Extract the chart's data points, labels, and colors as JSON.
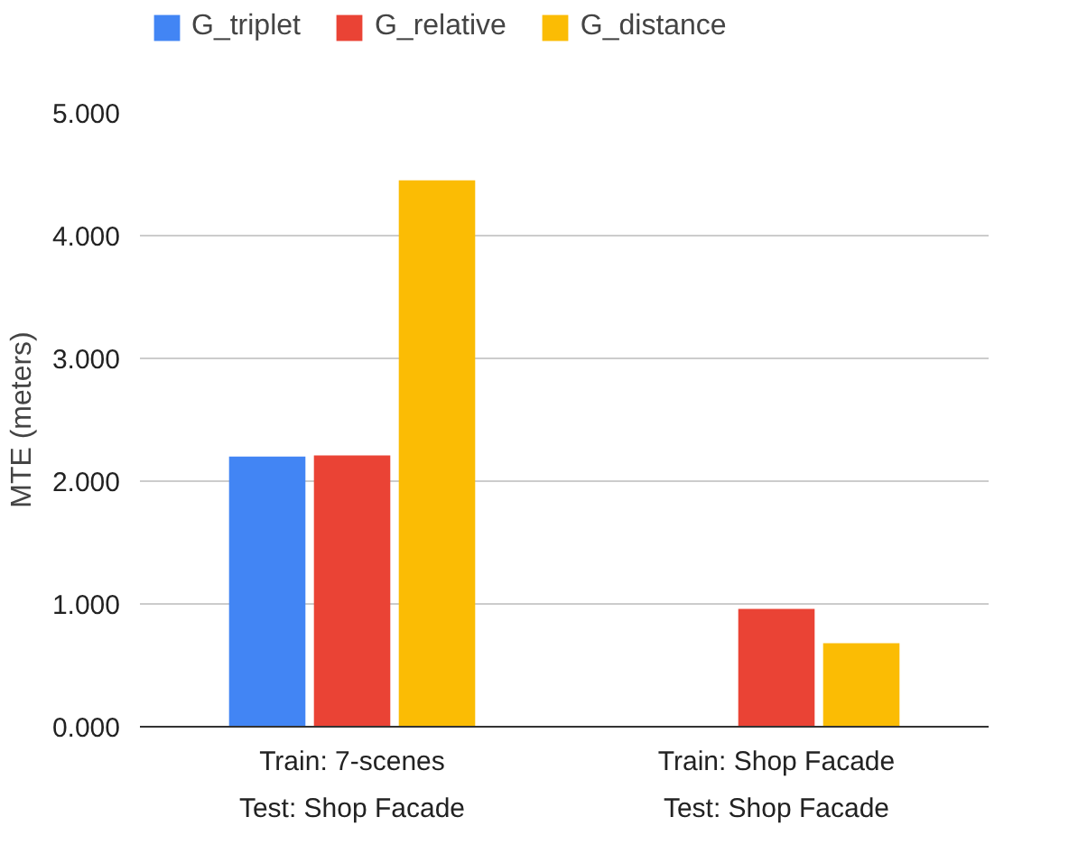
{
  "chart_data": {
    "type": "bar",
    "ylabel": "MTE (meters)",
    "categories": [
      "Train: 7-scenes\nTest: Shop Facade",
      "Train: Shop Facade\nTest: Shop Facade"
    ],
    "series": [
      {
        "name": "G_triplet",
        "color": "#4285f4",
        "values": [
          2.2,
          null
        ]
      },
      {
        "name": "G_relative",
        "color": "#ea4335",
        "values": [
          2.21,
          0.96
        ]
      },
      {
        "name": "G_distance",
        "color": "#fbbc04",
        "values": [
          4.45,
          0.68
        ]
      }
    ],
    "ylim": [
      0,
      5
    ],
    "yticks": [
      {
        "value": 0,
        "label": "0.000"
      },
      {
        "value": 1,
        "label": "1.000"
      },
      {
        "value": 2,
        "label": "2.000"
      },
      {
        "value": 3,
        "label": "3.000"
      },
      {
        "value": 4,
        "label": "4.000"
      },
      {
        "value": 5,
        "label": "5.000"
      }
    ],
    "grid": "y",
    "legend": "top left"
  }
}
